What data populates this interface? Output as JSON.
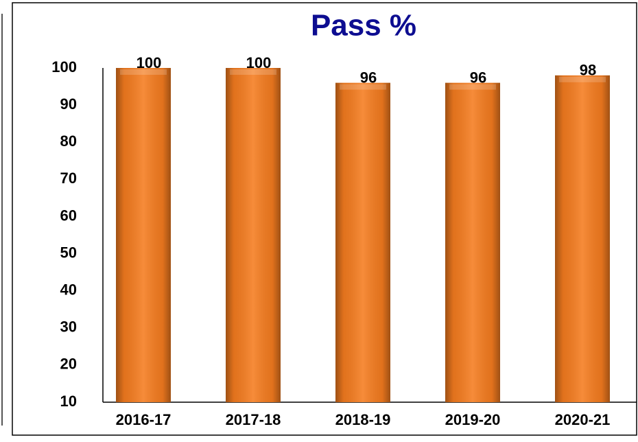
{
  "chart_data": {
    "type": "bar",
    "title": "Pass %",
    "categories": [
      "2016-17",
      "2017-18",
      "2018-19",
      "2019-20",
      "2020-21"
    ],
    "values": [
      100,
      100,
      96,
      96,
      98
    ],
    "color": "#f57c1f",
    "ylim": [
      10,
      100
    ],
    "yticks": [
      10,
      20,
      30,
      40,
      50,
      60,
      70,
      80,
      90,
      100
    ],
    "grid": false
  }
}
